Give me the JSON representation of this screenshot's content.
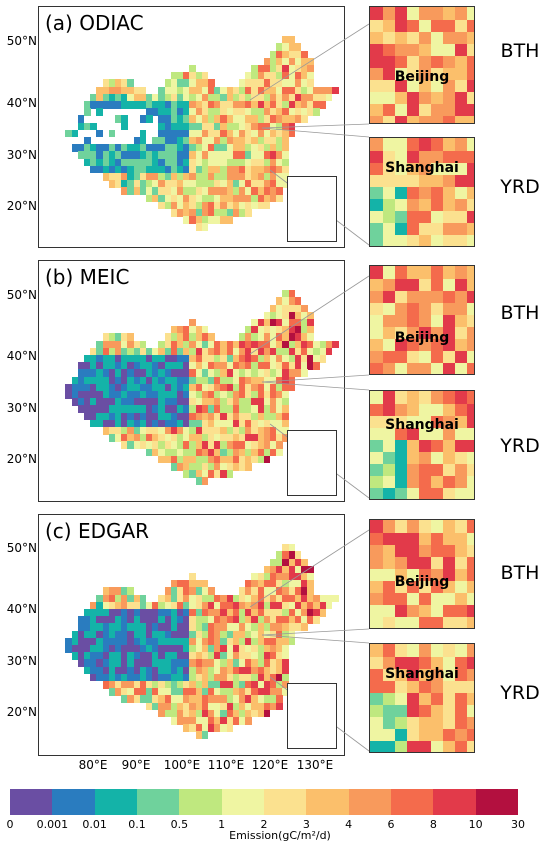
{
  "panels": [
    {
      "id": "a",
      "label": "(a) ODIAC",
      "zoom_top": {
        "region": "BTH",
        "city": "Beijing"
      },
      "zoom_bottom": {
        "region": "YRD",
        "city": "Shanghai"
      }
    },
    {
      "id": "b",
      "label": "(b) MEIC",
      "zoom_top": {
        "region": "BTH",
        "city": "Beijing"
      },
      "zoom_bottom": {
        "region": "YRD",
        "city": "Shanghai"
      }
    },
    {
      "id": "c",
      "label": "(c) EDGAR",
      "zoom_top": {
        "region": "BTH",
        "city": "Beijing"
      },
      "zoom_bottom": {
        "region": "YRD",
        "city": "Shanghai"
      }
    }
  ],
  "lat_labels": [
    "50°N",
    "40°N",
    "30°N",
    "20°N"
  ],
  "lon_labels": [
    "80°E",
    "90°E",
    "100°E",
    "110°E",
    "120°E",
    "130°E"
  ],
  "colorbar": {
    "title": "Emission(gC/m²/d)",
    "ticks": [
      "0",
      "0.001",
      "0.01",
      "0.1",
      "0.5",
      "1",
      "2",
      "3",
      "4",
      "6",
      "8",
      "10",
      "30"
    ],
    "colors": [
      "#6a4ea3",
      "#2a7cbf",
      "#14b3a8",
      "#6fd29c",
      "#bfe87f",
      "#eff5a2",
      "#fbe18f",
      "#fbbf6b",
      "#f89a5c",
      "#f46b4c",
      "#e23a4a",
      "#b3103f"
    ]
  }
}
